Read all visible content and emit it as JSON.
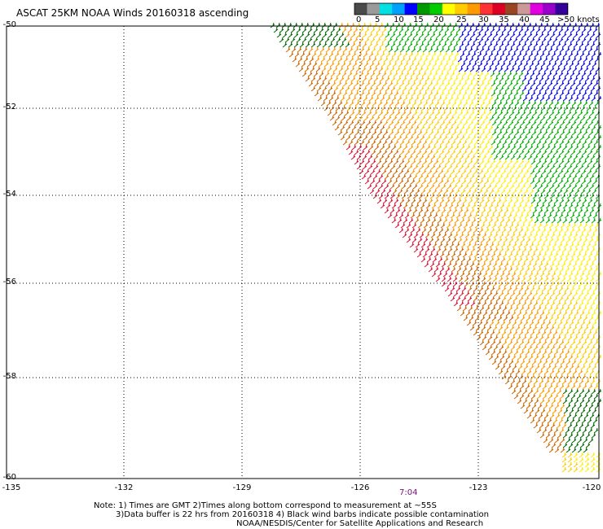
{
  "title": "ASCAT 25KM NOAA Winds 20160318 ascending",
  "legend": {
    "colors": [
      "#4a4a4a",
      "#9a9a9a",
      "#00e0e0",
      "#00a0ff",
      "#0000ff",
      "#009900",
      "#00cc00",
      "#ffff00",
      "#ffcc00",
      "#ff9900",
      "#ff3333",
      "#dd0022",
      "#994422",
      "#cc9999",
      "#e000e0",
      "#9900cc",
      "#330099"
    ],
    "ticks": [
      "0",
      "5",
      "10",
      "15",
      "20",
      "25",
      "30",
      "35",
      "40",
      "45",
      ">50 knots"
    ]
  },
  "y_axis": {
    "labels": [
      "-50",
      "-52",
      "-54",
      "-56",
      "-58",
      "-60"
    ],
    "values": [
      -50,
      -52,
      -54,
      -56,
      -58,
      -60
    ]
  },
  "x_axis": {
    "labels": [
      "-135",
      "-132",
      "-129",
      "-126",
      "-123",
      "-120"
    ],
    "values": [
      -135,
      -132,
      -129,
      -126,
      -123,
      -120
    ]
  },
  "time_label": "7:04",
  "notes": {
    "line1": "Note: 1) Times are GMT 2)Times along bottom correspond to measurement at ~55S",
    "line2": "3)Data buffer is 22 hrs from 20160318 4) Black wind barbs indicate possible contamination",
    "line3": "NOAA/NESDIS/Center for Satellite Applications and Research"
  }
}
